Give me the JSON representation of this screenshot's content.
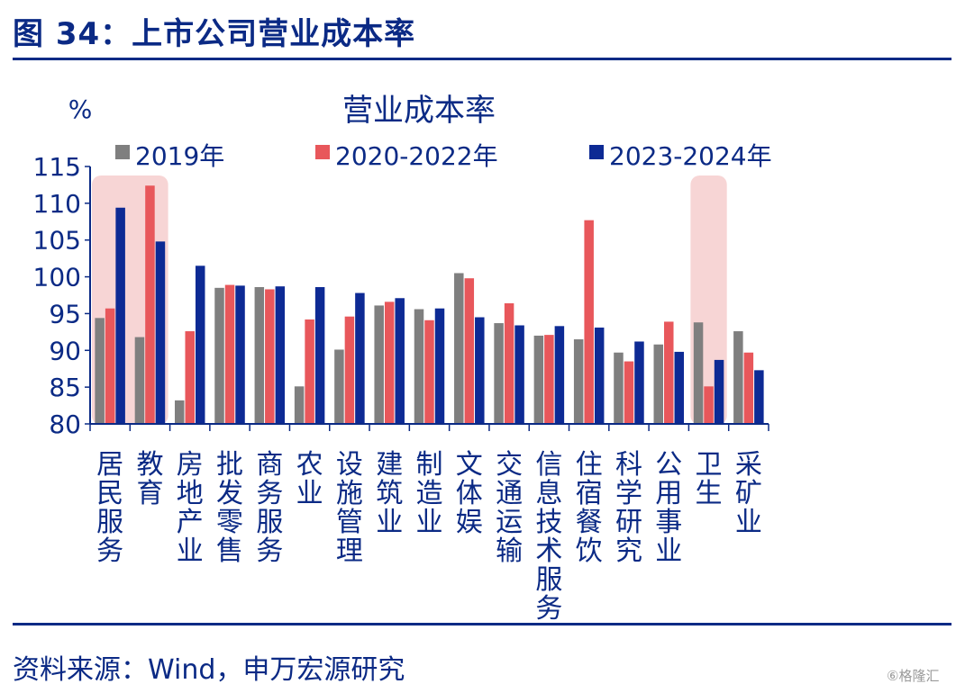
{
  "figure": {
    "title": "图 34：上市公司营业成本率",
    "source": "资料来源：Wind，申万宏源研究",
    "watermark": "⑥格隆汇"
  },
  "colors": {
    "series": [
      "#7f7f7f",
      "#e8575b",
      "#0d2a94"
    ],
    "highlight": "#f7d5d5",
    "text": "#0b2a85",
    "axis": "#0b2a85"
  },
  "chart_data": {
    "type": "bar",
    "title": "营业成本率",
    "ylabel": "%",
    "xlabel": "",
    "ylim": [
      80,
      115
    ],
    "yticks": [
      80,
      85,
      90,
      95,
      100,
      105,
      110,
      115
    ],
    "grid": false,
    "legend_position": "top",
    "categories": [
      "居民服务",
      "教育",
      "房地产业",
      "批发零售",
      "商务服务",
      "农业",
      "设施管理",
      "建筑业",
      "制造业",
      "文体娱",
      "交通运输",
      "信息技术服务",
      "住宿餐饮",
      "科学研究",
      "公用事业",
      "卫生",
      "采矿业"
    ],
    "highlighted_categories": [
      "居民服务",
      "教育",
      "卫生"
    ],
    "series": [
      {
        "name": "2019年",
        "values": [
          94.4,
          91.8,
          83.2,
          98.5,
          98.6,
          85.1,
          90.1,
          96.1,
          95.6,
          100.5,
          93.7,
          92.0,
          91.5,
          89.7,
          90.8,
          93.8,
          92.6
        ]
      },
      {
        "name": "2020-2022年",
        "values": [
          95.7,
          112.4,
          92.6,
          98.9,
          98.3,
          94.2,
          94.6,
          96.6,
          94.1,
          99.8,
          96.4,
          92.1,
          107.7,
          88.5,
          93.9,
          85.1,
          89.7
        ]
      },
      {
        "name": "2023-2024年",
        "values": [
          109.4,
          104.8,
          101.5,
          98.8,
          98.7,
          98.6,
          97.8,
          97.1,
          95.7,
          94.5,
          93.4,
          93.3,
          93.1,
          91.2,
          89.8,
          88.7,
          87.3
        ]
      }
    ]
  }
}
